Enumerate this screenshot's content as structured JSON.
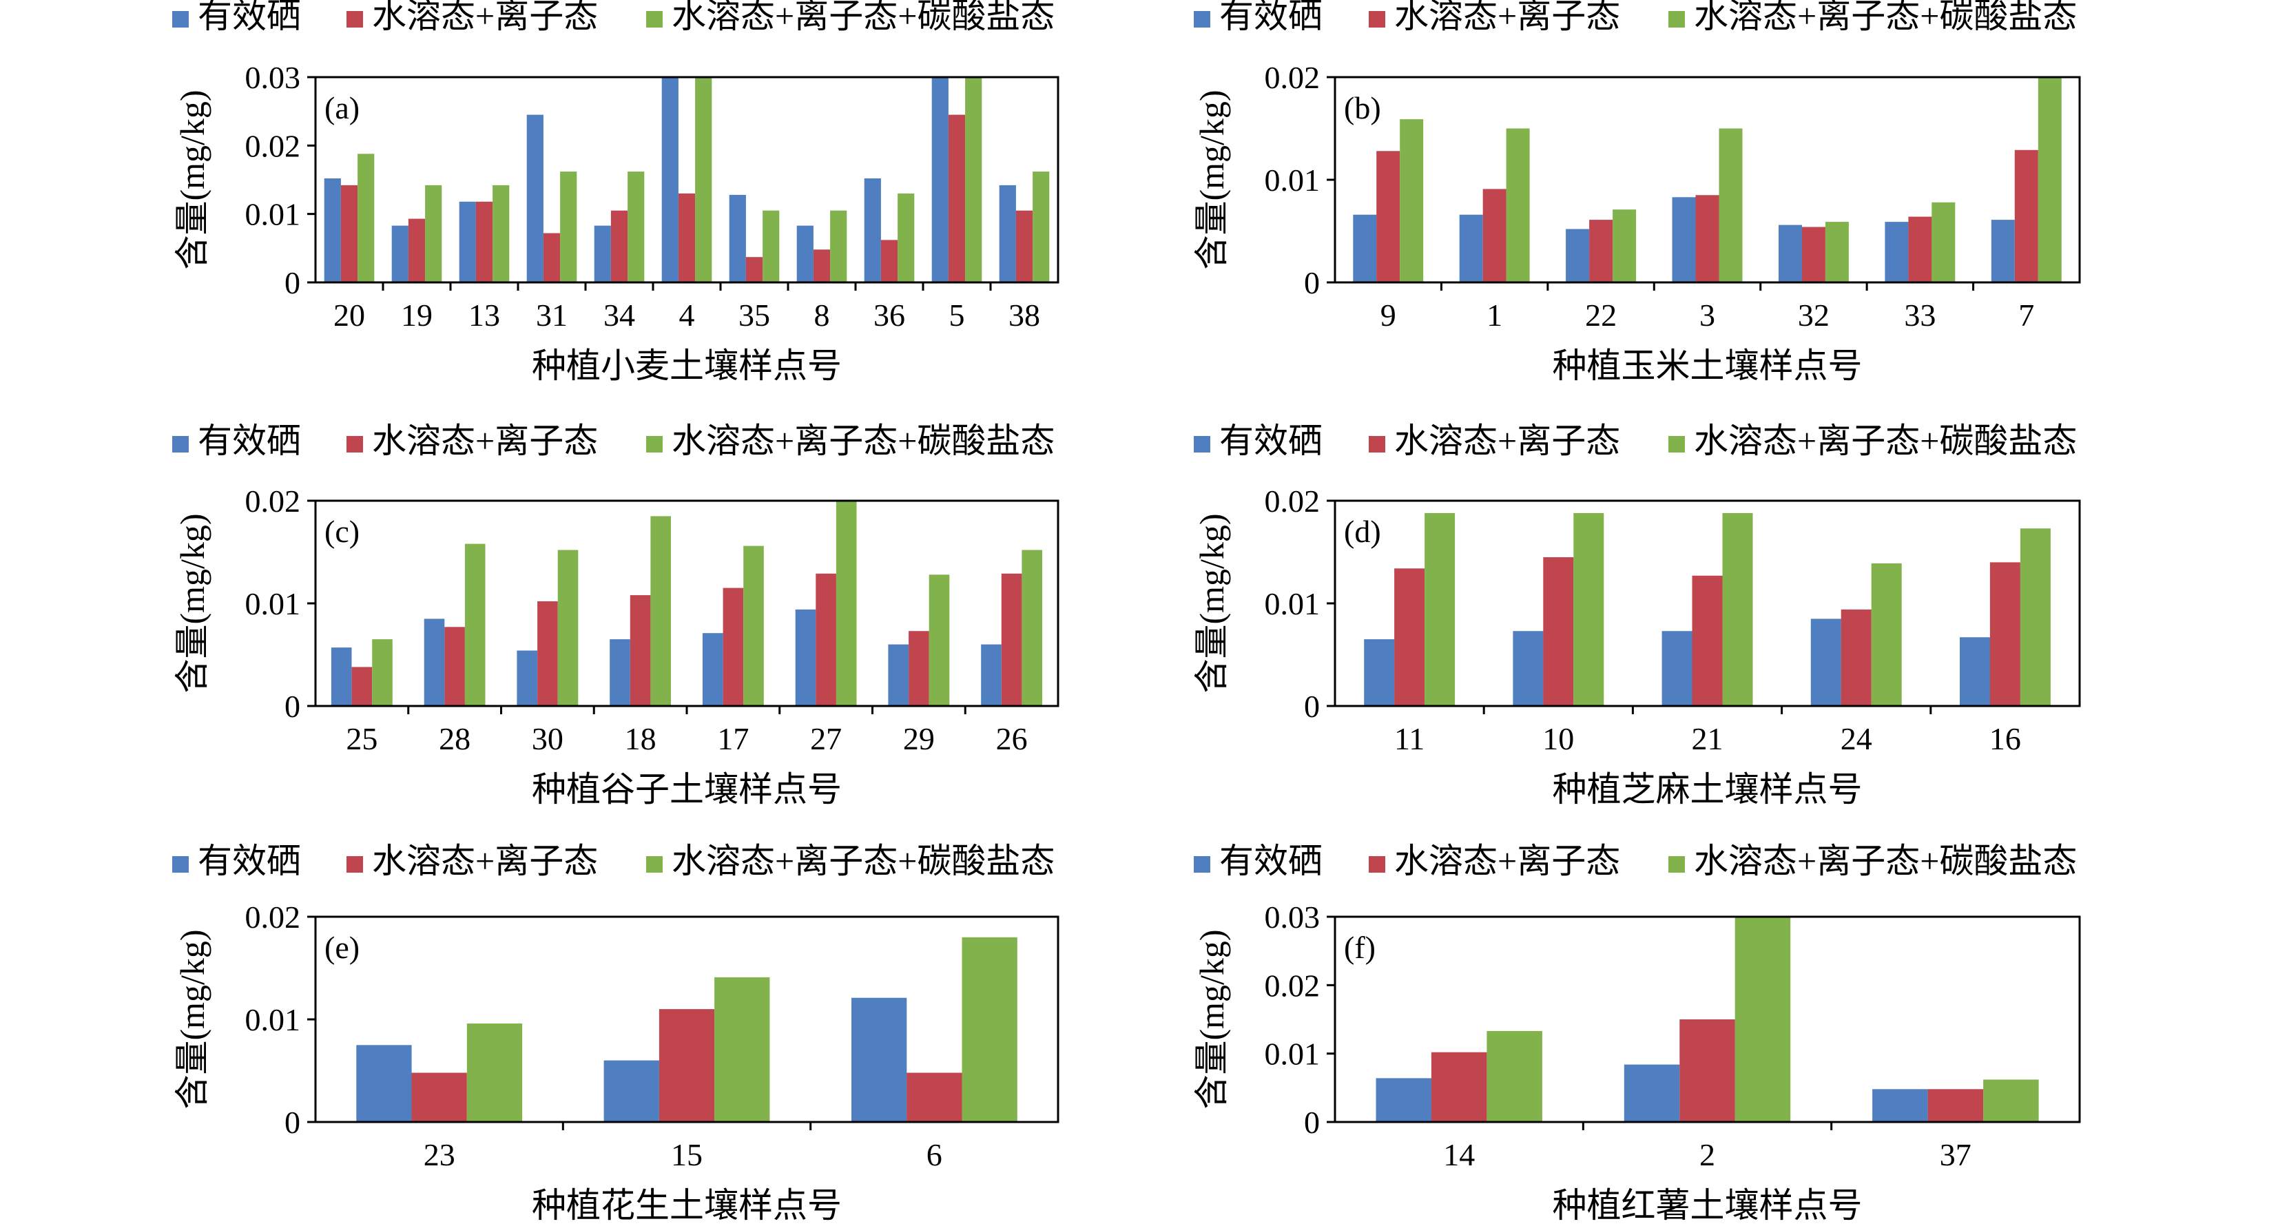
{
  "legend": {
    "items": [
      {
        "label": "有效硒",
        "color": "#4F7FC0"
      },
      {
        "label": "水溶态+离子态",
        "color": "#C0454F"
      },
      {
        "label": "水溶态+离子态+碳酸盐态",
        "color": "#82B24C"
      }
    ]
  },
  "chart_data": [
    {
      "type": "bar",
      "panel": "(a)",
      "ylabel": "含量(mg/kg)",
      "xlabel": "种植小麦土壤样点号",
      "ylim": [
        0,
        0.03
      ],
      "yticks": [
        "0",
        "0.01",
        "0.02",
        "0.03"
      ],
      "categories": [
        "20",
        "19",
        "13",
        "31",
        "34",
        "4",
        "35",
        "8",
        "36",
        "5",
        "38"
      ],
      "series": [
        {
          "name": "有效硒",
          "values": [
            0.0152,
            0.0083,
            0.0118,
            0.0245,
            0.0083,
            0.03,
            0.0128,
            0.0083,
            0.0152,
            0.03,
            0.0142
          ]
        },
        {
          "name": "水溶态+离子态",
          "values": [
            0.0142,
            0.0093,
            0.0118,
            0.0072,
            0.0105,
            0.013,
            0.0037,
            0.0048,
            0.0062,
            0.0245,
            0.0105
          ]
        },
        {
          "name": "水溶态+离子态+碳酸盐态",
          "values": [
            0.0188,
            0.0142,
            0.0142,
            0.0162,
            0.0162,
            0.03,
            0.0105,
            0.0105,
            0.013,
            0.03,
            0.0162
          ]
        }
      ]
    },
    {
      "type": "bar",
      "panel": "(b)",
      "ylabel": "含量(mg/kg)",
      "xlabel": "种植玉米土壤样点号",
      "ylim": [
        0,
        0.02
      ],
      "yticks": [
        "0",
        "0.01",
        "0.02"
      ],
      "categories": [
        "9",
        "1",
        "22",
        "3",
        "32",
        "33",
        "7"
      ],
      "series": [
        {
          "name": "有效硒",
          "values": [
            0.0066,
            0.0066,
            0.0052,
            0.0083,
            0.0056,
            0.0059,
            0.0061
          ]
        },
        {
          "name": "水溶态+离子态",
          "values": [
            0.0128,
            0.0091,
            0.0061,
            0.0085,
            0.0054,
            0.0064,
            0.0129
          ]
        },
        {
          "name": "水溶态+离子态+碳酸盐态",
          "values": [
            0.0159,
            0.015,
            0.0071,
            0.015,
            0.0059,
            0.0078,
            0.02
          ]
        }
      ]
    },
    {
      "type": "bar",
      "panel": "(c)",
      "ylabel": "含量(mg/kg)",
      "xlabel": "种植谷子土壤样点号",
      "ylim": [
        0,
        0.02
      ],
      "yticks": [
        "0",
        "0.01",
        "0.02"
      ],
      "categories": [
        "25",
        "28",
        "30",
        "18",
        "17",
        "27",
        "29",
        "26"
      ],
      "series": [
        {
          "name": "有效硒",
          "values": [
            0.0057,
            0.0085,
            0.0054,
            0.0065,
            0.0071,
            0.0094,
            0.006,
            0.006
          ]
        },
        {
          "name": "水溶态+离子态",
          "values": [
            0.0038,
            0.0077,
            0.0102,
            0.0108,
            0.0115,
            0.0129,
            0.0073,
            0.0129
          ]
        },
        {
          "name": "水溶态+离子态+碳酸盐态",
          "values": [
            0.0065,
            0.0158,
            0.0152,
            0.0185,
            0.0156,
            0.02,
            0.0128,
            0.0152
          ]
        }
      ]
    },
    {
      "type": "bar",
      "panel": "(d)",
      "ylabel": "含量(mg/kg)",
      "xlabel": "种植芝麻土壤样点号",
      "ylim": [
        0,
        0.02
      ],
      "yticks": [
        "0",
        "0.01",
        "0.02"
      ],
      "categories": [
        "11",
        "10",
        "21",
        "24",
        "16"
      ],
      "series": [
        {
          "name": "有效硒",
          "values": [
            0.0065,
            0.0073,
            0.0073,
            0.0085,
            0.0067
          ]
        },
        {
          "name": "水溶态+离子态",
          "values": [
            0.0134,
            0.0145,
            0.0127,
            0.0094,
            0.014
          ]
        },
        {
          "name": "水溶态+离子态+碳酸盐态",
          "values": [
            0.0188,
            0.0188,
            0.0188,
            0.0139,
            0.0173
          ]
        }
      ]
    },
    {
      "type": "bar",
      "panel": "(e)",
      "ylabel": "含量(mg/kg)",
      "xlabel": "种植花生土壤样点号",
      "ylim": [
        0,
        0.02
      ],
      "yticks": [
        "0",
        "0.01",
        "0.02"
      ],
      "categories": [
        "23",
        "15",
        "6"
      ],
      "series": [
        {
          "name": "有效硒",
          "values": [
            0.0075,
            0.006,
            0.0121
          ]
        },
        {
          "name": "水溶态+离子态",
          "values": [
            0.0048,
            0.011,
            0.0048
          ]
        },
        {
          "name": "水溶态+离子态+碳酸盐态",
          "values": [
            0.0096,
            0.0141,
            0.018
          ]
        }
      ]
    },
    {
      "type": "bar",
      "panel": "(f)",
      "ylabel": "含量(mg/kg)",
      "xlabel": "种植红薯土壤样点号",
      "ylim": [
        0,
        0.03
      ],
      "yticks": [
        "0",
        "0.01",
        "0.02",
        "0.03"
      ],
      "categories": [
        "14",
        "2",
        "37"
      ],
      "series": [
        {
          "name": "有效硒",
          "values": [
            0.0064,
            0.0084,
            0.0048
          ]
        },
        {
          "name": "水溶态+离子态",
          "values": [
            0.0102,
            0.015,
            0.0048
          ]
        },
        {
          "name": "水溶态+离子态+碳酸盐态",
          "values": [
            0.0133,
            0.03,
            0.0062
          ]
        }
      ]
    }
  ]
}
